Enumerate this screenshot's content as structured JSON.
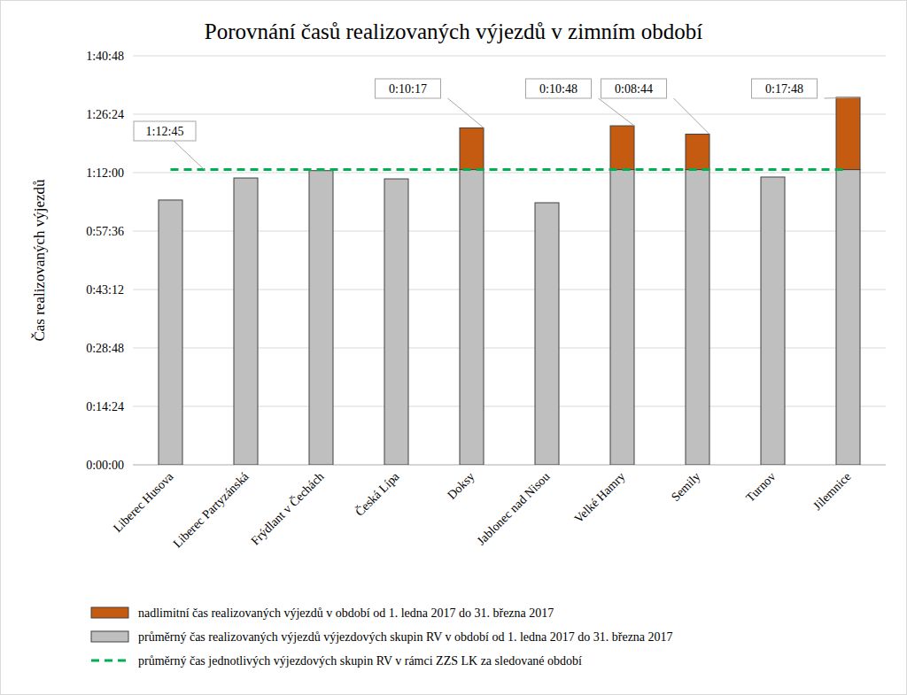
{
  "chart_data": {
    "type": "bar",
    "title": "Porovnání časů realizovaných výjezdů v zimním období",
    "y_label": "Čas realizovaných výjezdů",
    "categories": [
      "Liberec Husova",
      "Liberec Partyzánská",
      "Frýdlant v Čechách",
      "Česká Lípa",
      "Doksy",
      "Jablonec nad Nisou",
      "Velké Hamry",
      "Semily",
      "Turnov",
      "Jilemnice"
    ],
    "stacked": true,
    "grid": true,
    "legend": "bottom",
    "ylim": [
      0,
      6048
    ],
    "yticks": [
      {
        "value": 0,
        "label": "0:00:00"
      },
      {
        "value": 864,
        "label": "0:14:24"
      },
      {
        "value": 1728,
        "label": "0:28:48"
      },
      {
        "value": 2592,
        "label": "0:43:12"
      },
      {
        "value": 3456,
        "label": "0:57:36"
      },
      {
        "value": 4320,
        "label": "1:12:00"
      },
      {
        "value": 5184,
        "label": "1:26:24"
      },
      {
        "value": 6048,
        "label": "1:40:48"
      }
    ],
    "series": [
      {
        "name": "průměrný čas realizovaných výjezdů výjezdových skupin RV v období od 1. ledna 2017 do 31. března 2017",
        "type": "bar",
        "color": "#bfbfbf",
        "values": [
          3915,
          4241,
          4350,
          4228,
          4365,
          3875,
          4365,
          4365,
          4255,
          4365
        ]
      },
      {
        "name": "nadlimitní čas realizovaných výjezdů v období od 1. ledna 2017 do 31. března 2017",
        "type": "bar",
        "color": "#c55a11",
        "data_labels": true,
        "values": [
          null,
          null,
          null,
          null,
          617,
          null,
          648,
          524,
          null,
          1068
        ],
        "value_labels": [
          null,
          null,
          null,
          null,
          "0:10:17",
          null,
          "0:10:48",
          "0:08:44",
          null,
          "0:17:48"
        ]
      },
      {
        "name": "průměrný čas jednotlivých výjezdových skupin RV v rámci ZZS LK za sledované období",
        "type": "line",
        "color": "#00b050",
        "line_style": "dashed",
        "values": [
          4365,
          4365,
          4365,
          4365,
          4365,
          4365,
          4365,
          4365,
          4365,
          4365
        ]
      }
    ],
    "annotations": [
      {
        "text": "1:12:45",
        "value": 4365
      }
    ]
  }
}
